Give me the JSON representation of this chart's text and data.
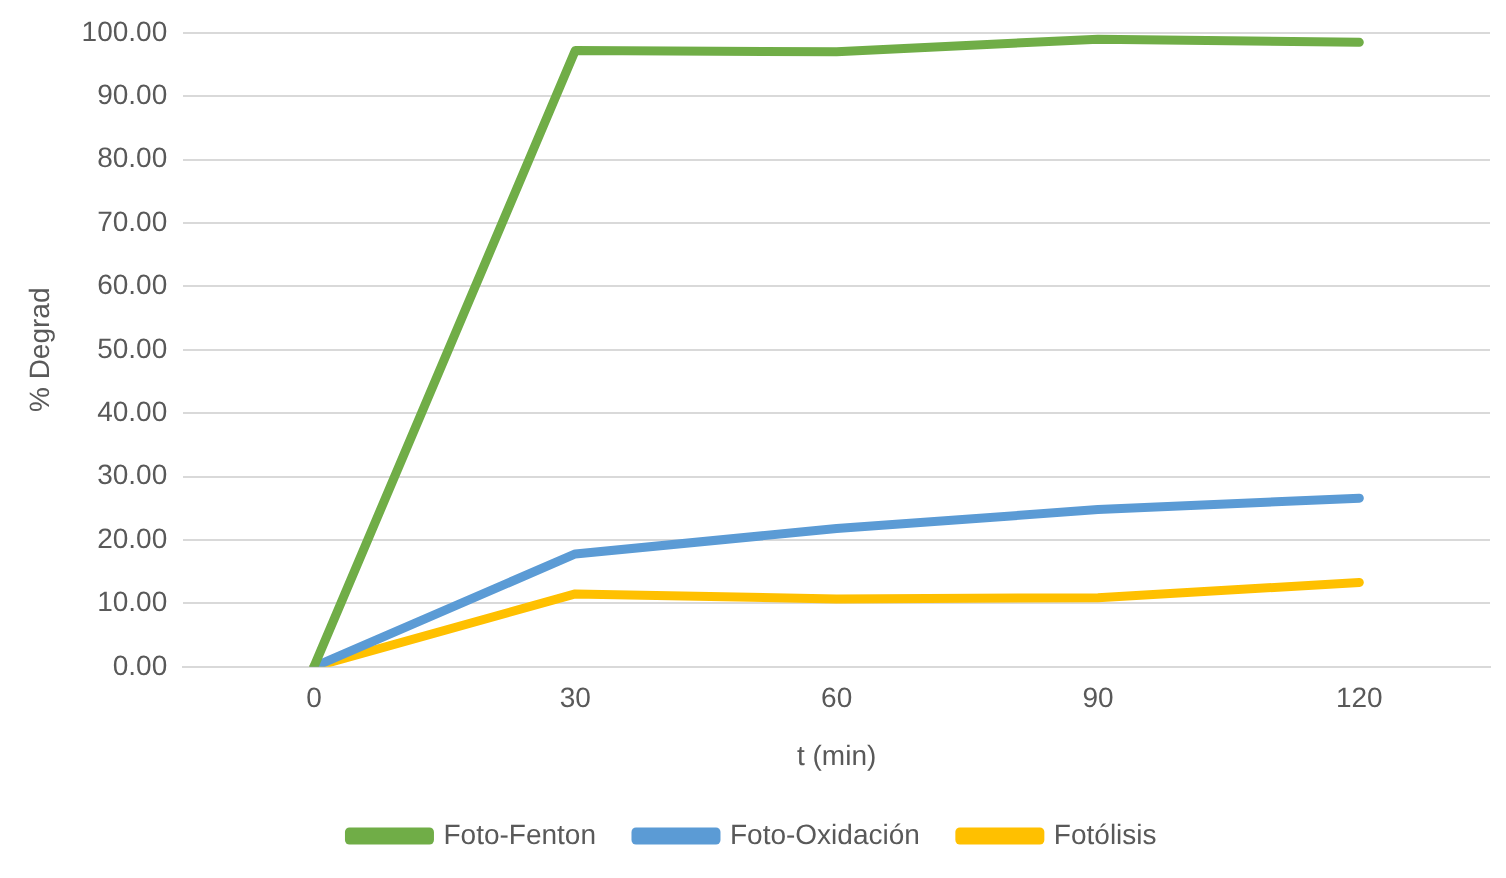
{
  "chart_data": {
    "type": "line",
    "xlabel": "t (min)",
    "ylabel": "% Degrad",
    "categories": [
      "0",
      "30",
      "60",
      "90",
      "120"
    ],
    "series": [
      {
        "name": "Foto-Fenton",
        "color": "#70ad47",
        "values": [
          0,
          97.2,
          97.0,
          99.0,
          98.5
        ]
      },
      {
        "name": "Foto-Oxidación",
        "color": "#5b9bd5",
        "values": [
          0,
          17.8,
          21.8,
          24.8,
          26.6
        ]
      },
      {
        "name": "Fotólisis",
        "color": "#ffc000",
        "values": [
          0,
          11.5,
          10.7,
          10.9,
          13.3
        ]
      }
    ],
    "ylim": [
      0,
      100
    ],
    "yticks": [
      {
        "value": 0,
        "label": "0.00"
      },
      {
        "value": 10,
        "label": "10.00"
      },
      {
        "value": 20,
        "label": "20.00"
      },
      {
        "value": 30,
        "label": "30.00"
      },
      {
        "value": 40,
        "label": "40.00"
      },
      {
        "value": 50,
        "label": "50.00"
      },
      {
        "value": 60,
        "label": "60.00"
      },
      {
        "value": 70,
        "label": "70.00"
      },
      {
        "value": 80,
        "label": "80.00"
      },
      {
        "value": 90,
        "label": "90.00"
      },
      {
        "value": 100,
        "label": "100.00"
      }
    ],
    "grid": "y",
    "legend": "bottom",
    "marker": "none",
    "line_style": "solid"
  }
}
